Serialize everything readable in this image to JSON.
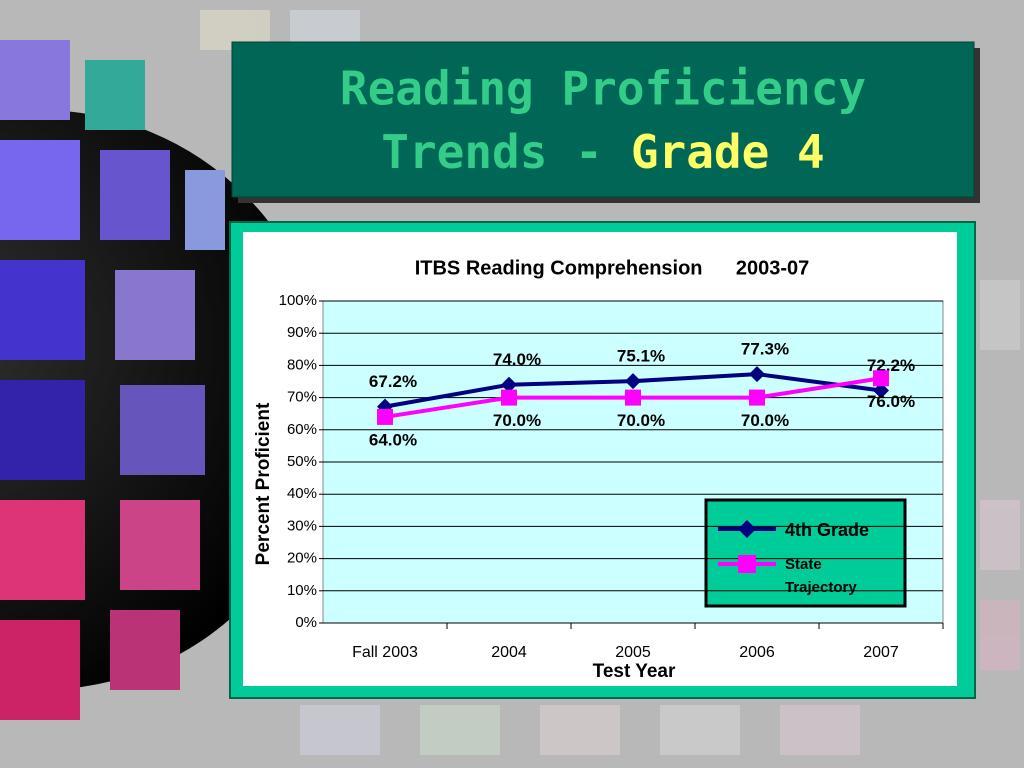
{
  "slide": {
    "title_line1": "Reading Proficiency",
    "title_line2": "Trends -",
    "title_highlight": "Grade 4"
  },
  "chart_data": {
    "type": "line",
    "title": "ITBS Reading Comprehension      2003-07",
    "x_label": "Test Year",
    "y_label": "Percent Proficient",
    "categories": [
      "Fall 2003",
      "2004",
      "2005",
      "2006",
      "2007"
    ],
    "series": [
      {
        "name": "4th Grade",
        "color": "#000080",
        "marker": "diamond",
        "values": [
          67.2,
          74.0,
          75.1,
          77.3,
          72.2
        ],
        "value_labels": [
          "67.2%",
          "74.0%",
          "75.1%",
          "77.3%",
          "72.2%"
        ]
      },
      {
        "name": "State Trajectory",
        "color": "#ff00ff",
        "marker": "square",
        "values": [
          64.0,
          70.0,
          70.0,
          70.0,
          76.0
        ],
        "value_labels": [
          "64.0%",
          "70.0%",
          "70.0%",
          "70.0%",
          "76.0%"
        ]
      }
    ],
    "ylim": [
      0,
      100
    ],
    "yticks": [
      {
        "value": 0,
        "label": "0%"
      },
      {
        "value": 10,
        "label": "10%"
      },
      {
        "value": 20,
        "label": "20%"
      },
      {
        "value": 30,
        "label": "30%"
      },
      {
        "value": 40,
        "label": "40%"
      },
      {
        "value": 50,
        "label": "50%"
      },
      {
        "value": 60,
        "label": "60%"
      },
      {
        "value": 70,
        "label": "70%"
      },
      {
        "value": 80,
        "label": "80%"
      },
      {
        "value": 90,
        "label": "90%"
      },
      {
        "value": 100,
        "label": "100%"
      }
    ],
    "grid": true
  }
}
